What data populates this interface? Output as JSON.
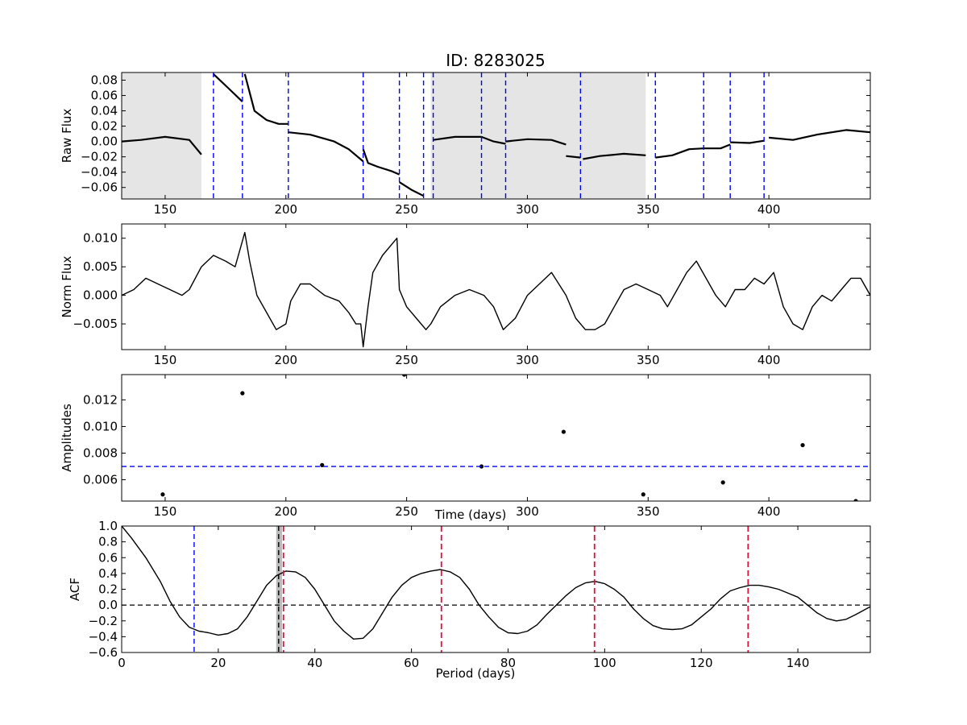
{
  "title": "ID: 8283025",
  "chart_data": [
    {
      "type": "line",
      "panel": "raw",
      "ylabel": "Raw Flux",
      "xlim": [
        132,
        442
      ],
      "ylim": [
        -0.075,
        0.09
      ],
      "xticks": [
        150,
        200,
        250,
        300,
        350,
        400
      ],
      "yticks": [
        -0.06,
        -0.04,
        -0.02,
        0.0,
        0.02,
        0.04,
        0.06,
        0.08
      ],
      "ytick_labels": [
        "−0.06",
        "−0.04",
        "−0.02",
        "0.00",
        "0.02",
        "0.04",
        "0.06",
        "0.08"
      ],
      "shaded_regions": [
        [
          132,
          165
        ],
        [
          260,
          349
        ]
      ],
      "quarter_lines": [
        170,
        182,
        201,
        232,
        247,
        257,
        261,
        281,
        291,
        322,
        353,
        373,
        384,
        398
      ],
      "segments": [
        {
          "x": [
            132,
            140,
            150,
            160,
            165
          ],
          "y": [
            0.0,
            0.002,
            0.006,
            0.002,
            -0.017
          ]
        },
        {
          "x": [
            170,
            176,
            182
          ],
          "y": [
            0.088,
            0.07,
            0.052
          ]
        },
        {
          "x": [
            183,
            187,
            192,
            197,
            201
          ],
          "y": [
            0.088,
            0.04,
            0.028,
            0.023,
            0.023
          ]
        },
        {
          "x": [
            201,
            210,
            220,
            226,
            232
          ],
          "y": [
            0.012,
            0.009,
            0.0,
            -0.01,
            -0.026
          ]
        },
        {
          "x": [
            232,
            234,
            238,
            244,
            247
          ],
          "y": [
            -0.01,
            -0.028,
            -0.033,
            -0.039,
            -0.043
          ]
        },
        {
          "x": [
            247,
            252,
            257
          ],
          "y": [
            -0.053,
            -0.063,
            -0.071
          ]
        },
        {
          "x": [
            261,
            270,
            281
          ],
          "y": [
            0.002,
            0.006,
            0.006
          ]
        },
        {
          "x": [
            281,
            286,
            291
          ],
          "y": [
            0.006,
            0.0,
            -0.003
          ]
        },
        {
          "x": [
            291,
            300,
            310,
            316
          ],
          "y": [
            0.0,
            0.003,
            0.002,
            -0.004
          ]
        },
        {
          "x": [
            316,
            322
          ],
          "y": [
            -0.019,
            -0.021
          ]
        },
        {
          "x": [
            323,
            330,
            340,
            349
          ],
          "y": [
            -0.023,
            -0.019,
            -0.016,
            -0.018
          ]
        },
        {
          "x": [
            353,
            360,
            367,
            373
          ],
          "y": [
            -0.021,
            -0.018,
            -0.01,
            -0.009
          ]
        },
        {
          "x": [
            373,
            380,
            384
          ],
          "y": [
            -0.009,
            -0.009,
            -0.004
          ]
        },
        {
          "x": [
            384,
            392,
            398
          ],
          "y": [
            -0.001,
            -0.002,
            0.001
          ]
        },
        {
          "x": [
            400,
            410,
            420,
            432,
            442
          ],
          "y": [
            0.005,
            0.002,
            0.009,
            0.015,
            0.012
          ]
        }
      ]
    },
    {
      "type": "line",
      "panel": "norm",
      "ylabel": "Norm Flux",
      "xlim": [
        132,
        442
      ],
      "ylim": [
        -0.0095,
        0.0125
      ],
      "xticks": [
        150,
        200,
        250,
        300,
        350,
        400
      ],
      "yticks": [
        -0.005,
        0.0,
        0.005,
        0.01
      ],
      "ytick_labels": [
        "−0.005",
        "0.000",
        "0.005",
        "0.010"
      ],
      "x": [
        132,
        137,
        142,
        147,
        152,
        157,
        160,
        165,
        170,
        175,
        179,
        183,
        185,
        188,
        192,
        196,
        200,
        202,
        206,
        210,
        216,
        222,
        226,
        229,
        231,
        232,
        234,
        236,
        240,
        244,
        246,
        247,
        250,
        254,
        258,
        260,
        264,
        270,
        276,
        282,
        286,
        290,
        295,
        300,
        305,
        310,
        316,
        320,
        324,
        328,
        332,
        336,
        340,
        345,
        350,
        355,
        358,
        362,
        366,
        370,
        374,
        378,
        382,
        386,
        390,
        394,
        398,
        402,
        406,
        410,
        414,
        418,
        422,
        426,
        430,
        434,
        438,
        442
      ],
      "y": [
        0.0,
        0.001,
        0.003,
        0.002,
        0.001,
        0.0,
        0.001,
        0.005,
        0.007,
        0.006,
        0.005,
        0.011,
        0.006,
        0.0,
        -0.003,
        -0.006,
        -0.005,
        -0.001,
        0.002,
        0.002,
        0.0,
        -0.001,
        -0.003,
        -0.005,
        -0.005,
        -0.009,
        -0.002,
        0.004,
        0.007,
        0.009,
        0.01,
        0.001,
        -0.002,
        -0.004,
        -0.006,
        -0.005,
        -0.002,
        0.0,
        0.001,
        0.0,
        -0.002,
        -0.006,
        -0.004,
        0.0,
        0.002,
        0.004,
        0.0,
        -0.004,
        -0.006,
        -0.006,
        -0.005,
        -0.002,
        0.001,
        0.002,
        0.001,
        0.0,
        -0.002,
        0.001,
        0.004,
        0.006,
        0.003,
        0.0,
        -0.002,
        0.001,
        0.001,
        0.003,
        0.002,
        0.004,
        -0.002,
        -0.005,
        -0.006,
        -0.002,
        0.0,
        -0.001,
        0.001,
        0.003,
        0.003,
        0.0
      ]
    },
    {
      "type": "scatter",
      "panel": "amplitudes",
      "ylabel": "Amplitudes",
      "xlabel": "Time (days)",
      "xlim": [
        132,
        442
      ],
      "ylim": [
        0.0044,
        0.0139
      ],
      "xticks": [
        150,
        200,
        250,
        300,
        350,
        400
      ],
      "yticks": [
        0.006,
        0.008,
        0.01,
        0.012
      ],
      "ytick_labels": [
        "0.006",
        "0.008",
        "0.010",
        "0.012"
      ],
      "x": [
        149,
        182,
        215,
        249,
        281,
        315,
        348,
        381,
        414,
        436
      ],
      "y": [
        0.0049,
        0.0125,
        0.0071,
        0.0139,
        0.007,
        0.0096,
        0.0049,
        0.0058,
        0.0086,
        0.0044
      ],
      "threshold": 0.007
    },
    {
      "type": "line",
      "panel": "acf",
      "ylabel": "ACF",
      "xlabel": "Period (days)",
      "xlim": [
        0,
        155
      ],
      "ylim": [
        -0.6,
        1.0
      ],
      "xticks": [
        0,
        20,
        40,
        60,
        80,
        100,
        120,
        140
      ],
      "yticks": [
        -0.6,
        -0.4,
        -0.2,
        0.0,
        0.2,
        0.4,
        0.6,
        0.8,
        1.0
      ],
      "ytick_labels": [
        "−0.6",
        "−0.4",
        "−0.2",
        "0.0",
        "0.2",
        "0.4",
        "0.6",
        "0.8",
        "1.0"
      ],
      "x": [
        0,
        2,
        5,
        8,
        10,
        12,
        14,
        16,
        18,
        20,
        22,
        24,
        26,
        28,
        30,
        32,
        34,
        36,
        38,
        40,
        42,
        44,
        46,
        48,
        50,
        52,
        54,
        56,
        58,
        60,
        62,
        64,
        66,
        68,
        70,
        72,
        74,
        76,
        78,
        80,
        82,
        84,
        86,
        88,
        90,
        92,
        94,
        96,
        98,
        100,
        102,
        104,
        106,
        108,
        110,
        112,
        114,
        116,
        118,
        120,
        122,
        124,
        126,
        128,
        130,
        132,
        134,
        136,
        138,
        140,
        142,
        144,
        146,
        148,
        150,
        152,
        155
      ],
      "y": [
        1.0,
        0.85,
        0.6,
        0.3,
        0.05,
        -0.15,
        -0.28,
        -0.33,
        -0.35,
        -0.38,
        -0.36,
        -0.3,
        -0.15,
        0.05,
        0.25,
        0.37,
        0.43,
        0.42,
        0.35,
        0.2,
        0.0,
        -0.2,
        -0.33,
        -0.43,
        -0.42,
        -0.3,
        -0.1,
        0.1,
        0.25,
        0.35,
        0.4,
        0.43,
        0.45,
        0.42,
        0.35,
        0.2,
        0.0,
        -0.15,
        -0.28,
        -0.35,
        -0.36,
        -0.33,
        -0.25,
        -0.12,
        0.0,
        0.12,
        0.22,
        0.28,
        0.3,
        0.27,
        0.2,
        0.1,
        -0.05,
        -0.17,
        -0.26,
        -0.3,
        -0.31,
        -0.3,
        -0.25,
        -0.15,
        -0.05,
        0.08,
        0.18,
        0.22,
        0.25,
        0.25,
        0.23,
        0.2,
        0.15,
        0.1,
        0.0,
        -0.1,
        -0.17,
        -0.2,
        -0.18,
        -0.12,
        -0.02
      ],
      "blue_line": 15,
      "period": 32.5,
      "period_band": [
        32.0,
        33.2
      ],
      "red_lines": [
        33.5,
        66.2,
        97.9,
        129.7
      ]
    }
  ]
}
